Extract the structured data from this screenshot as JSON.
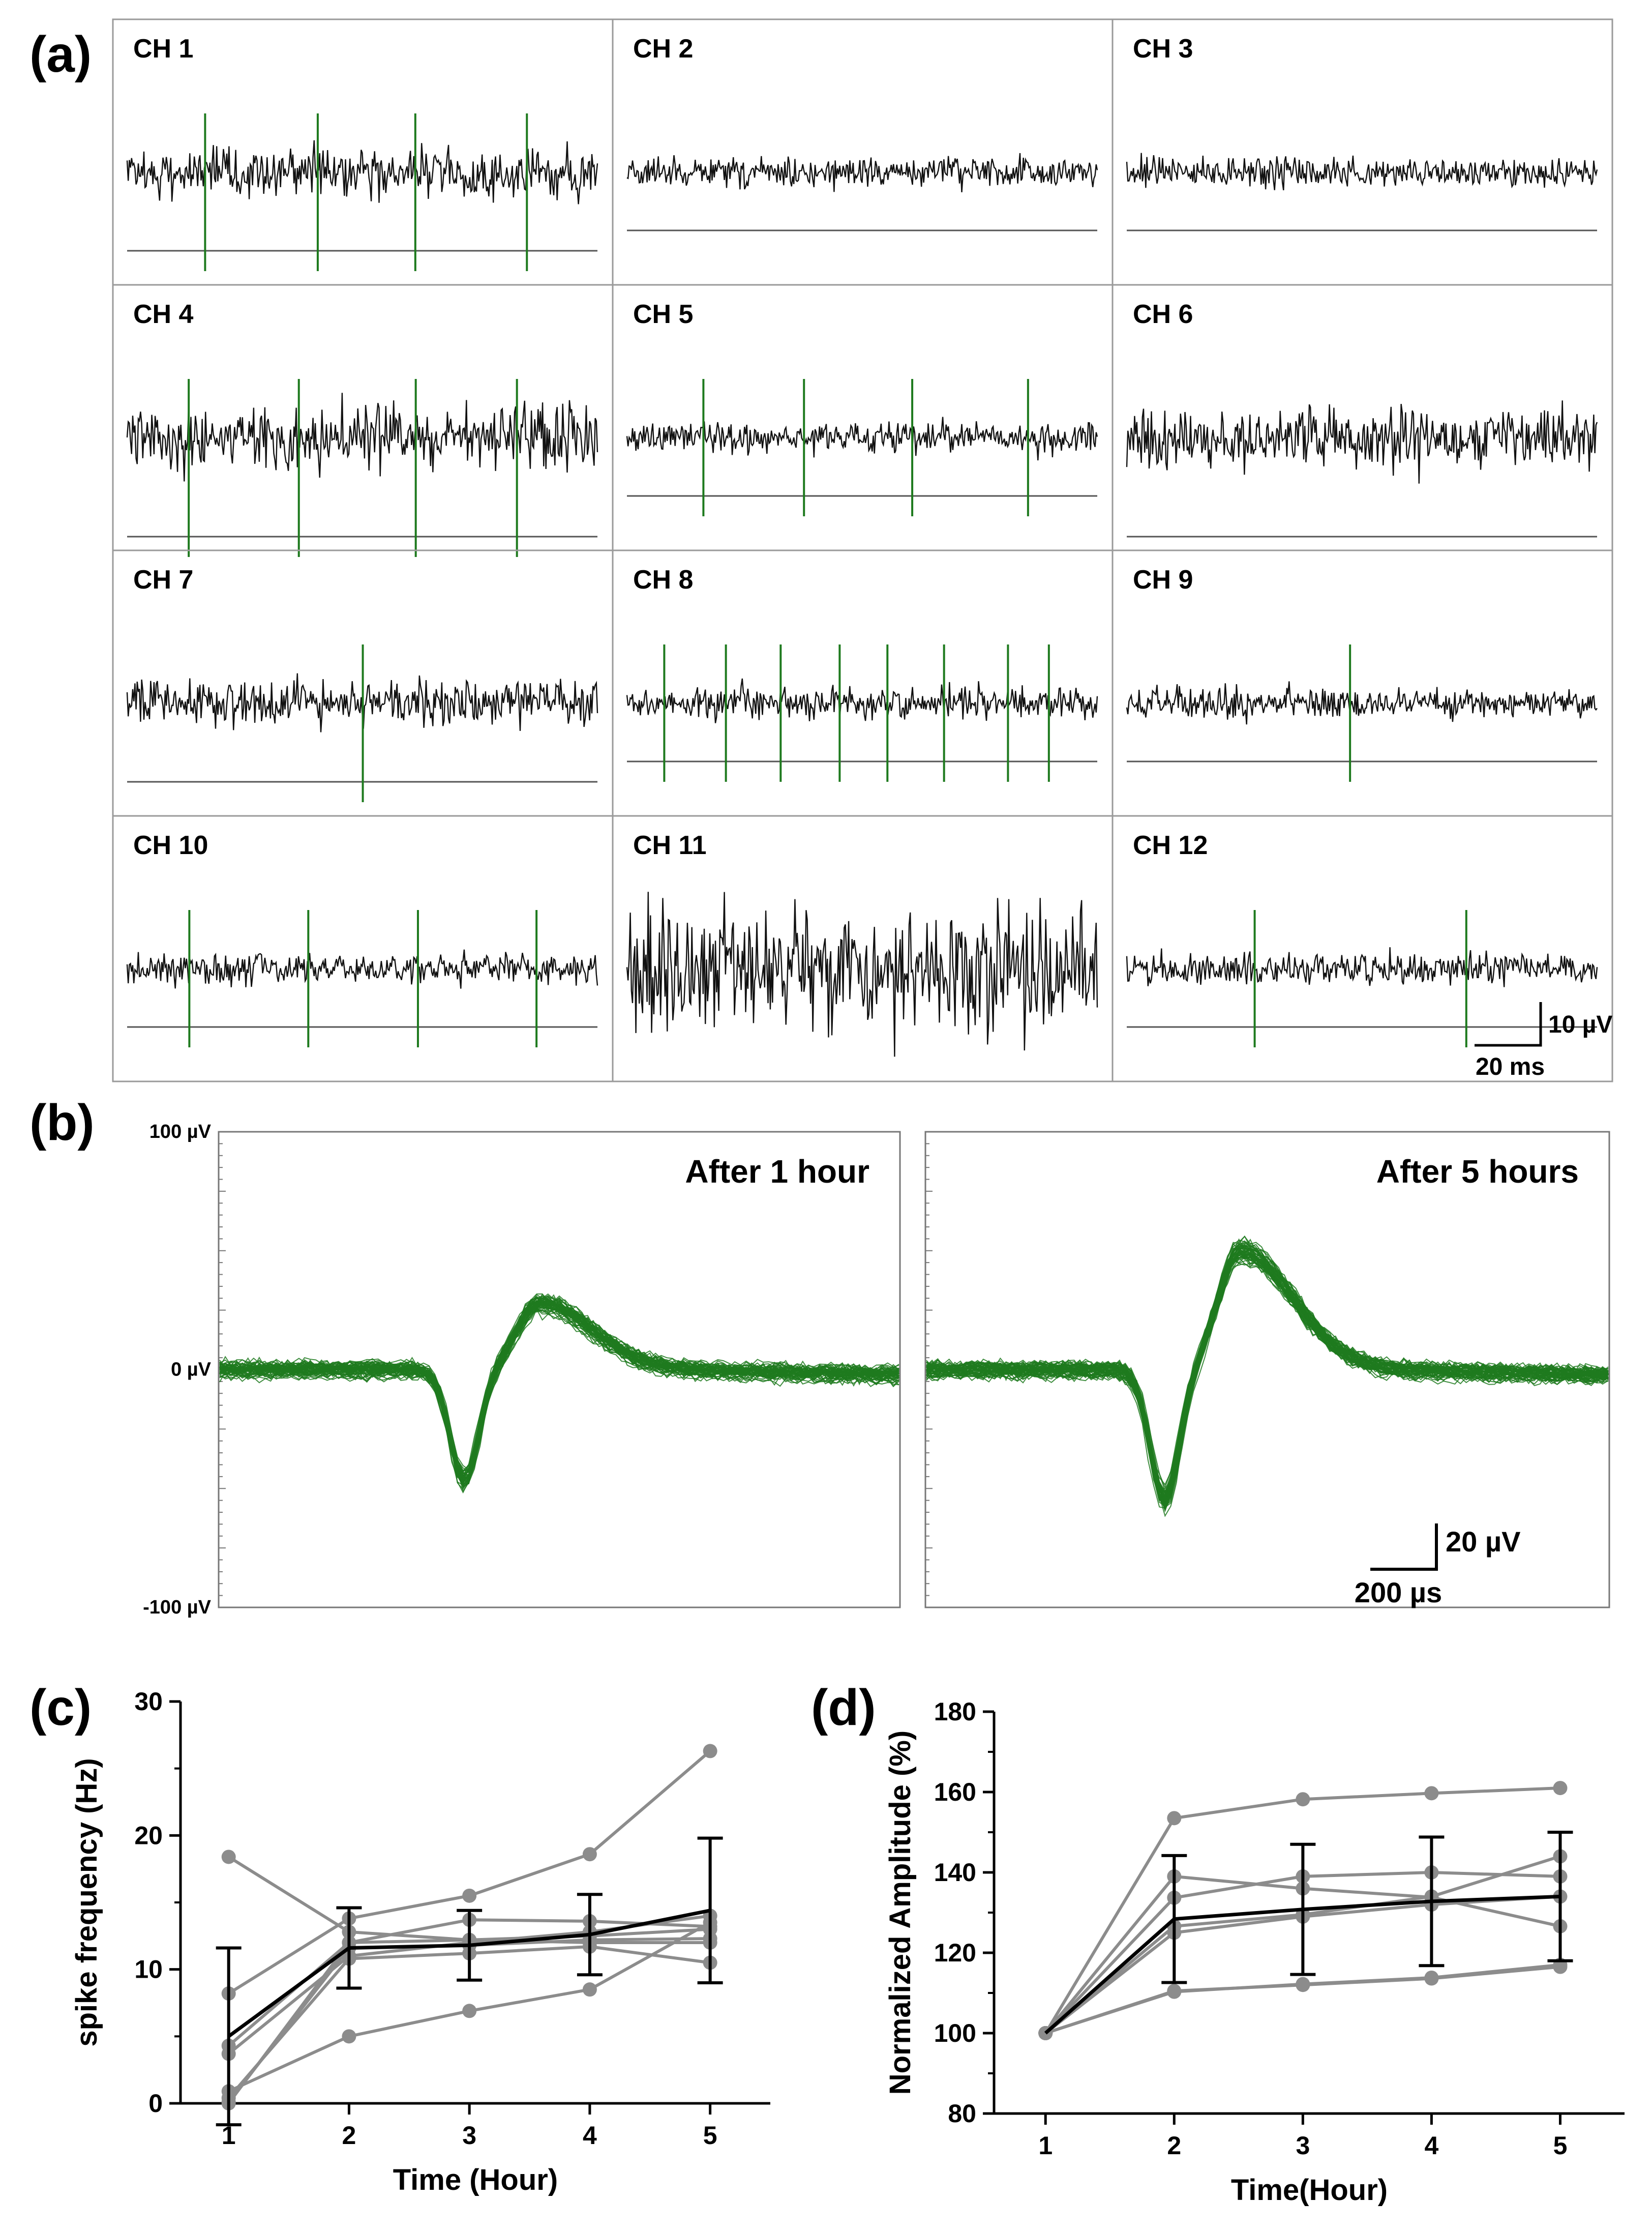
{
  "panels": {
    "a": "(a)",
    "b": "(b)",
    "c": "(c)",
    "d": "(d)"
  },
  "colors": {
    "trace": "#111111",
    "spike": "#1e7a1e",
    "threshold": "#555555",
    "grid": "#9a9a9a",
    "individual": "#8c8c8c",
    "mean": "#000000"
  },
  "panel_a": {
    "channels": [
      {
        "label": "CH 1",
        "spikes": 4,
        "amp": "medium"
      },
      {
        "label": "CH 2",
        "spikes": 0,
        "amp": "low"
      },
      {
        "label": "CH 3",
        "spikes": 0,
        "amp": "low"
      },
      {
        "label": "CH 4",
        "spikes": 4,
        "amp": "high"
      },
      {
        "label": "CH 5",
        "spikes": 4,
        "amp": "low"
      },
      {
        "label": "CH 6",
        "spikes": 0,
        "amp": "high"
      },
      {
        "label": "CH 7",
        "spikes": 1,
        "amp": "medium"
      },
      {
        "label": "CH 8",
        "spikes": 8,
        "amp": "low"
      },
      {
        "label": "CH 9",
        "spikes": 1,
        "amp": "low"
      },
      {
        "label": "CH 10",
        "spikes": 4,
        "amp": "low"
      },
      {
        "label": "CH 11",
        "spikes": 0,
        "amp": "noise"
      },
      {
        "label": "CH 12",
        "spikes": 2,
        "amp": "low"
      }
    ],
    "scale_bar": {
      "voltage": "10 µV",
      "time": "20 ms"
    }
  },
  "panel_b": {
    "subplots": [
      {
        "title": "After 1 hour",
        "peak_uV": 28,
        "trough_uV": -47
      },
      {
        "title": "After 5 hours",
        "peak_uV": 50,
        "trough_uV": -55
      }
    ],
    "y_ticks": [
      "100 µV",
      "0 µV",
      "-100 µV"
    ],
    "scale_bar": {
      "voltage": "20 µV",
      "time": "200 µs"
    }
  },
  "chart_data": [
    {
      "type": "line",
      "panel": "c",
      "xlabel": "Time (Hour)",
      "ylabel": "spike frequency (Hz)",
      "x": [
        1,
        2,
        3,
        4,
        5
      ],
      "xlim": [
        0.6,
        5.5
      ],
      "ylim": [
        0,
        30
      ],
      "x_ticks": [
        "1",
        "2",
        "3",
        "4",
        "5"
      ],
      "y_ticks": [
        "0",
        "10",
        "20",
        "30"
      ],
      "individual_series": [
        [
          18.4,
          12.8,
          12.2,
          12.0,
          12.0
        ],
        [
          8.2,
          13.8,
          15.5,
          18.6,
          26.3
        ],
        [
          4.3,
          12.0,
          13.7,
          13.6,
          13.2
        ],
        [
          3.7,
          11.0,
          12.0,
          12.8,
          14.0
        ],
        [
          0.9,
          5.0,
          6.9,
          8.5,
          13.5
        ],
        [
          0.4,
          10.8,
          11.2,
          11.7,
          10.5
        ],
        [
          0.1,
          11.6,
          11.8,
          12.2,
          12.3
        ],
        [
          0.0,
          12.0,
          12.2,
          12.5,
          13.0
        ]
      ],
      "mean": [
        5.0,
        11.6,
        11.8,
        12.6,
        14.4
      ],
      "error": [
        6.6,
        3.0,
        2.6,
        3.0,
        5.4
      ]
    },
    {
      "type": "line",
      "panel": "d",
      "xlabel": "Time(Hour)",
      "ylabel": "Normalized Amplitude (%)",
      "x": [
        1,
        2,
        3,
        4,
        5
      ],
      "xlim": [
        0.6,
        5.5
      ],
      "ylim": [
        80,
        180
      ],
      "x_ticks": [
        "1",
        "2",
        "3",
        "4",
        "5"
      ],
      "y_ticks": [
        "80",
        "100",
        "120",
        "140",
        "160",
        "180"
      ],
      "individual_series": [
        [
          100,
          153.5,
          158.2,
          159.7,
          161.0
        ],
        [
          100,
          139.0,
          136.0,
          133.8,
          126.6
        ],
        [
          100,
          133.7,
          139.0,
          140.0,
          139.0
        ],
        [
          100,
          126.6,
          129.5,
          134.0,
          144.0
        ],
        [
          100,
          125.0,
          129.0,
          132.0,
          134.0
        ],
        [
          100,
          110.5,
          112.0,
          113.6,
          116.5
        ],
        [
          100,
          110.3,
          112.2,
          113.8,
          117.0
        ]
      ],
      "mean": [
        100,
        128.4,
        130.8,
        132.8,
        134.0
      ],
      "error": [
        0,
        15.8,
        16.2,
        16.0,
        16.0
      ]
    }
  ]
}
